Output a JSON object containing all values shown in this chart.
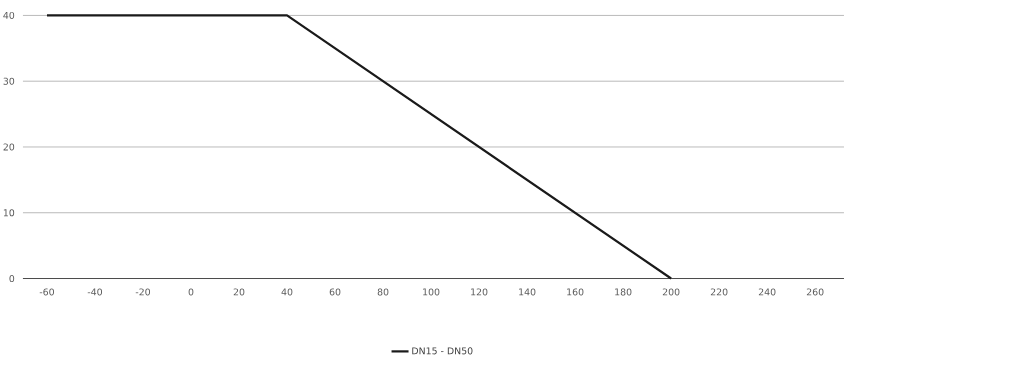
{
  "chart_data": {
    "type": "line",
    "x": [
      -60,
      40,
      200
    ],
    "series": [
      {
        "name": "DN15 - DN50",
        "color": "#1a1a1a",
        "values": [
          40,
          40,
          0
        ]
      }
    ],
    "xlim": [
      -70,
      272
    ],
    "ylim": [
      0,
      40
    ],
    "xticks": [
      -60,
      -40,
      -20,
      0,
      20,
      40,
      60,
      80,
      100,
      120,
      140,
      160,
      180,
      200,
      220,
      240,
      260
    ],
    "yticks": [
      0,
      10,
      20,
      30,
      40
    ],
    "grid": "y",
    "legend": "bottom"
  }
}
